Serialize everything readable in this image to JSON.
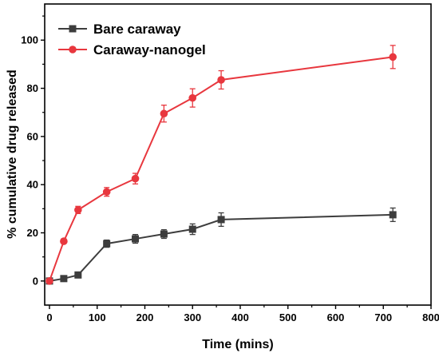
{
  "chart_data": {
    "type": "line",
    "title": "",
    "xlabel": "Time (mins)",
    "ylabel": "% cumulative drug released",
    "xlim": [
      -10,
      800
    ],
    "ylim": [
      -10,
      115
    ],
    "xticks": [
      0,
      100,
      200,
      300,
      400,
      500,
      600,
      700,
      800
    ],
    "yticks": [
      0,
      20,
      40,
      60,
      80,
      100
    ],
    "grid": false,
    "legend_position": "top-left",
    "x": [
      0,
      30,
      60,
      120,
      180,
      240,
      300,
      360,
      720
    ],
    "series": [
      {
        "name": "Bare caraway",
        "color": "#3d3d3d",
        "marker": "square",
        "values": [
          0,
          1,
          2.5,
          15.5,
          17.5,
          19.5,
          21.5,
          25.5,
          27.5
        ],
        "errors": [
          0.5,
          0.8,
          0.8,
          1.5,
          1.8,
          1.8,
          2.2,
          2.8,
          2.8
        ]
      },
      {
        "name": "Caraway-nanogel",
        "color": "#e8373e",
        "marker": "circle",
        "values": [
          0,
          16.5,
          29.5,
          37,
          42.5,
          69.5,
          76,
          83.5,
          93
        ],
        "errors": [
          0.5,
          0.8,
          1.5,
          1.8,
          2.2,
          3.5,
          3.8,
          3.8,
          4.8
        ]
      }
    ]
  }
}
